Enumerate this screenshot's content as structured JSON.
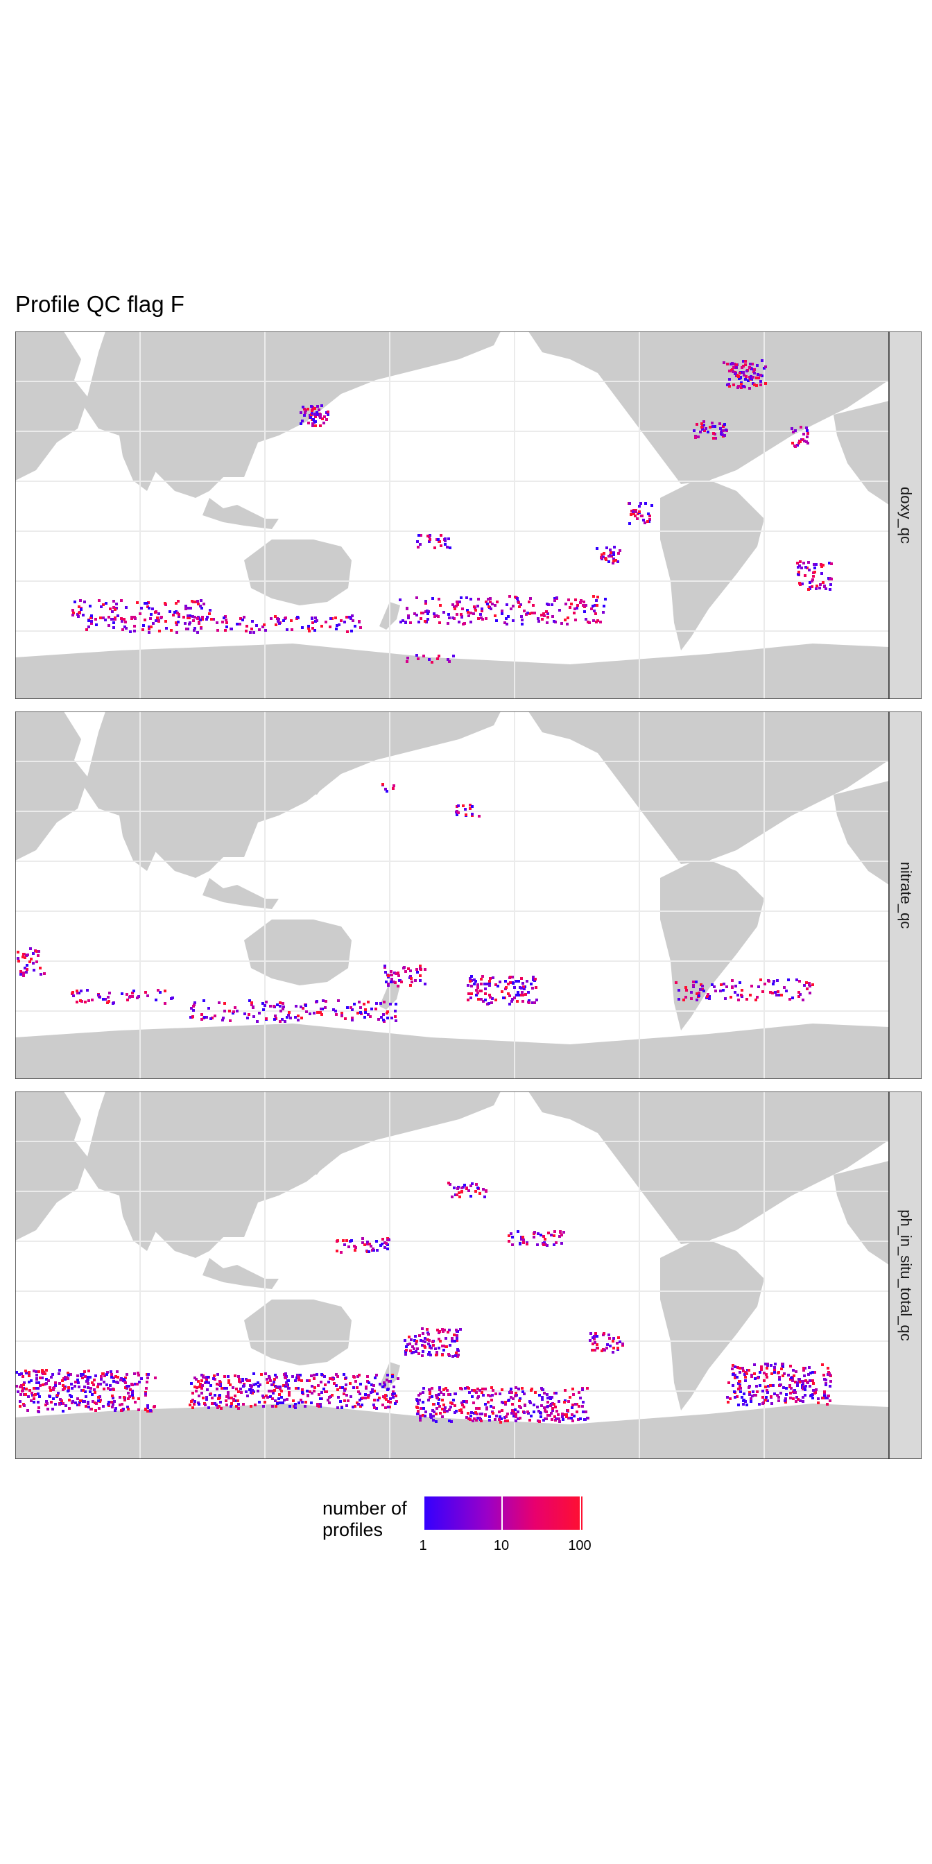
{
  "title": "Profile QC flag F",
  "panels": [
    {
      "strip": "doxy_qc"
    },
    {
      "strip": "nitrate_qc"
    },
    {
      "strip": "ph_in_situ_total_qc"
    }
  ],
  "legend": {
    "title_line1": "number of",
    "title_line2": "profiles",
    "ticks": [
      "1",
      "10",
      "100"
    ],
    "scale": "log10",
    "colors": {
      "low": "#3200ff",
      "mid": "#9a00c8",
      "high": "#ff1030"
    }
  },
  "colors": {
    "land": "#cccccc",
    "ocean": "#ffffff",
    "grid": "#ebebeb",
    "strip": "#d9d9d9"
  }
}
